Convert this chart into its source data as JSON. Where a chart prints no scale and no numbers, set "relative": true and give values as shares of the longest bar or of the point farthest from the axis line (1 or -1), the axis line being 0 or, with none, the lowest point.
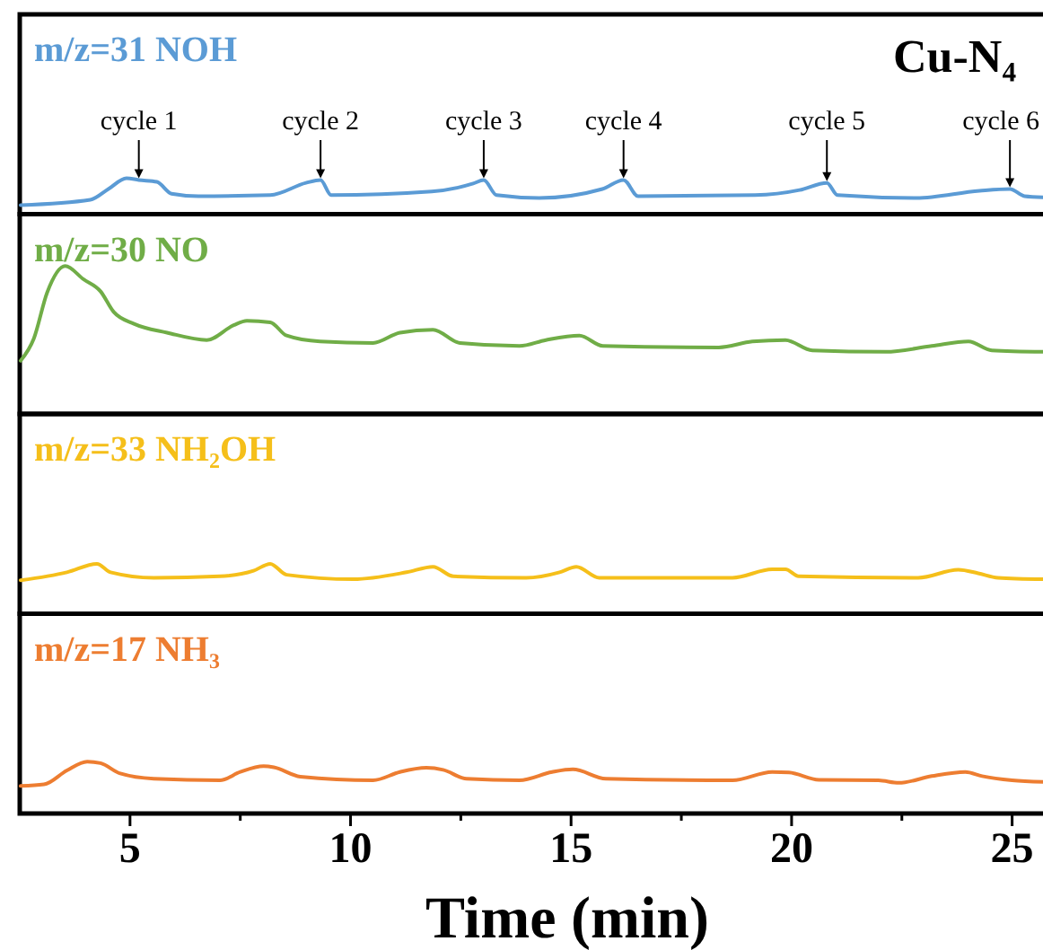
{
  "chart_data": [
    {
      "type": "line",
      "title": "Cu-N₄",
      "relative": true,
      "xlim": [
        2.5,
        25.7
      ],
      "tick_labels": false,
      "series": [
        {
          "name": "m/z=31 NOH",
          "color": "#5b9bd5",
          "x": [
            2.52,
            4.1,
            4.51,
            4.92,
            5.2,
            5.61,
            5.94,
            6.55,
            8.18,
            8.99,
            9.32,
            9.56,
            11.84,
            12.78,
            13.02,
            13.31,
            14.28,
            15.71,
            16.19,
            16.52,
            19.17,
            20.18,
            20.8,
            21.04,
            22.83,
            24.26,
            24.95,
            25.28,
            25.7
          ],
          "values": [
            0.25,
            0.4,
            0.7,
            1.0,
            0.95,
            0.9,
            0.57,
            0.5,
            0.53,
            0.87,
            0.95,
            0.53,
            0.63,
            0.85,
            0.95,
            0.53,
            0.45,
            0.7,
            0.95,
            0.5,
            0.53,
            0.67,
            0.87,
            0.53,
            0.45,
            0.65,
            0.7,
            0.5,
            0.47
          ]
        }
      ],
      "annotations": [
        {
          "text": "cycle 1",
          "x": 5.2,
          "y": 0.95
        },
        {
          "text": "cycle 2",
          "x": 9.32,
          "y": 0.95
        },
        {
          "text": "cycle 3",
          "x": 13.02,
          "y": 0.95
        },
        {
          "text": "cycle 4",
          "x": 16.19,
          "y": 0.95
        },
        {
          "text": "cycle 5",
          "x": 20.8,
          "y": 0.87
        },
        {
          "text": "cycle 6",
          "x": 24.95,
          "y": 0.7
        }
      ]
    },
    {
      "type": "line",
      "relative": true,
      "xlim": [
        2.5,
        25.7
      ],
      "tick_labels": false,
      "series": [
        {
          "name": "m/z=30 NO",
          "color": "#70ad47",
          "x": [
            2.52,
            2.82,
            3.12,
            3.53,
            3.95,
            4.33,
            4.63,
            5.09,
            5.84,
            6.74,
            7.35,
            7.65,
            8.18,
            8.55,
            9.31,
            10.51,
            11.12,
            11.87,
            12.48,
            13.83,
            14.43,
            15.19,
            15.72,
            18.35,
            19.11,
            19.86,
            20.47,
            22.13,
            23.18,
            24.01,
            24.54,
            25.7
          ],
          "values": [
            0.36,
            0.51,
            0.82,
            1.0,
            0.91,
            0.83,
            0.69,
            0.61,
            0.55,
            0.5,
            0.6,
            0.63,
            0.62,
            0.53,
            0.49,
            0.48,
            0.55,
            0.57,
            0.48,
            0.46,
            0.5,
            0.53,
            0.46,
            0.45,
            0.49,
            0.5,
            0.43,
            0.42,
            0.46,
            0.49,
            0.43,
            0.42
          ]
        }
      ]
    },
    {
      "type": "line",
      "relative": true,
      "xlim": [
        2.5,
        25.7
      ],
      "tick_labels": false,
      "series": [
        {
          "name": "m/z=33 NH₂OH",
          "color": "#f5bf1a",
          "x": [
            2.52,
            3.57,
            4.25,
            4.56,
            5.54,
            7.04,
            7.8,
            8.18,
            8.55,
            10.06,
            11.27,
            11.87,
            12.33,
            13.98,
            14.74,
            15.12,
            15.64,
            18.66,
            19.56,
            19.86,
            20.16,
            22.87,
            23.78,
            24.23,
            24.68,
            25.7
          ],
          "values": [
            0.67,
            0.83,
            1.0,
            0.83,
            0.72,
            0.75,
            0.86,
            1.0,
            0.78,
            0.69,
            0.83,
            0.94,
            0.75,
            0.72,
            0.83,
            0.94,
            0.72,
            0.72,
            0.89,
            0.89,
            0.75,
            0.72,
            0.88,
            0.81,
            0.72,
            0.69
          ]
        }
      ]
    },
    {
      "type": "line",
      "relative": true,
      "xlim": [
        2.5,
        25.7
      ],
      "tick_labels": "x",
      "xlabel": "Time (min)",
      "xticks": [
        5,
        {
          "value": 7.5,
          "label": null
        },
        10,
        {
          "value": 12.5,
          "label": null
        },
        15,
        {
          "value": 17.5,
          "label": null
        },
        20,
        {
          "value": 22.5,
          "label": null
        },
        25
      ],
      "series": [
        {
          "name": "m/z=17 NH₃",
          "color": "#ed7d31",
          "x": [
            2.52,
            3.05,
            3.57,
            4.03,
            4.33,
            4.78,
            5.54,
            7.04,
            7.5,
            8.03,
            8.26,
            8.86,
            10.51,
            11.12,
            11.72,
            12.1,
            12.63,
            13.83,
            14.57,
            15.04,
            15.79,
            18.66,
            19.56,
            19.94,
            20.62,
            21.97,
            22.43,
            23.18,
            23.94,
            24.32,
            25.0,
            25.7
          ],
          "values": [
            0.53,
            0.56,
            0.83,
            1.0,
            0.97,
            0.77,
            0.67,
            0.64,
            0.8,
            0.91,
            0.89,
            0.71,
            0.64,
            0.8,
            0.88,
            0.84,
            0.67,
            0.64,
            0.8,
            0.85,
            0.67,
            0.64,
            0.8,
            0.79,
            0.65,
            0.64,
            0.59,
            0.72,
            0.8,
            0.72,
            0.64,
            0.61
          ]
        }
      ]
    }
  ]
}
